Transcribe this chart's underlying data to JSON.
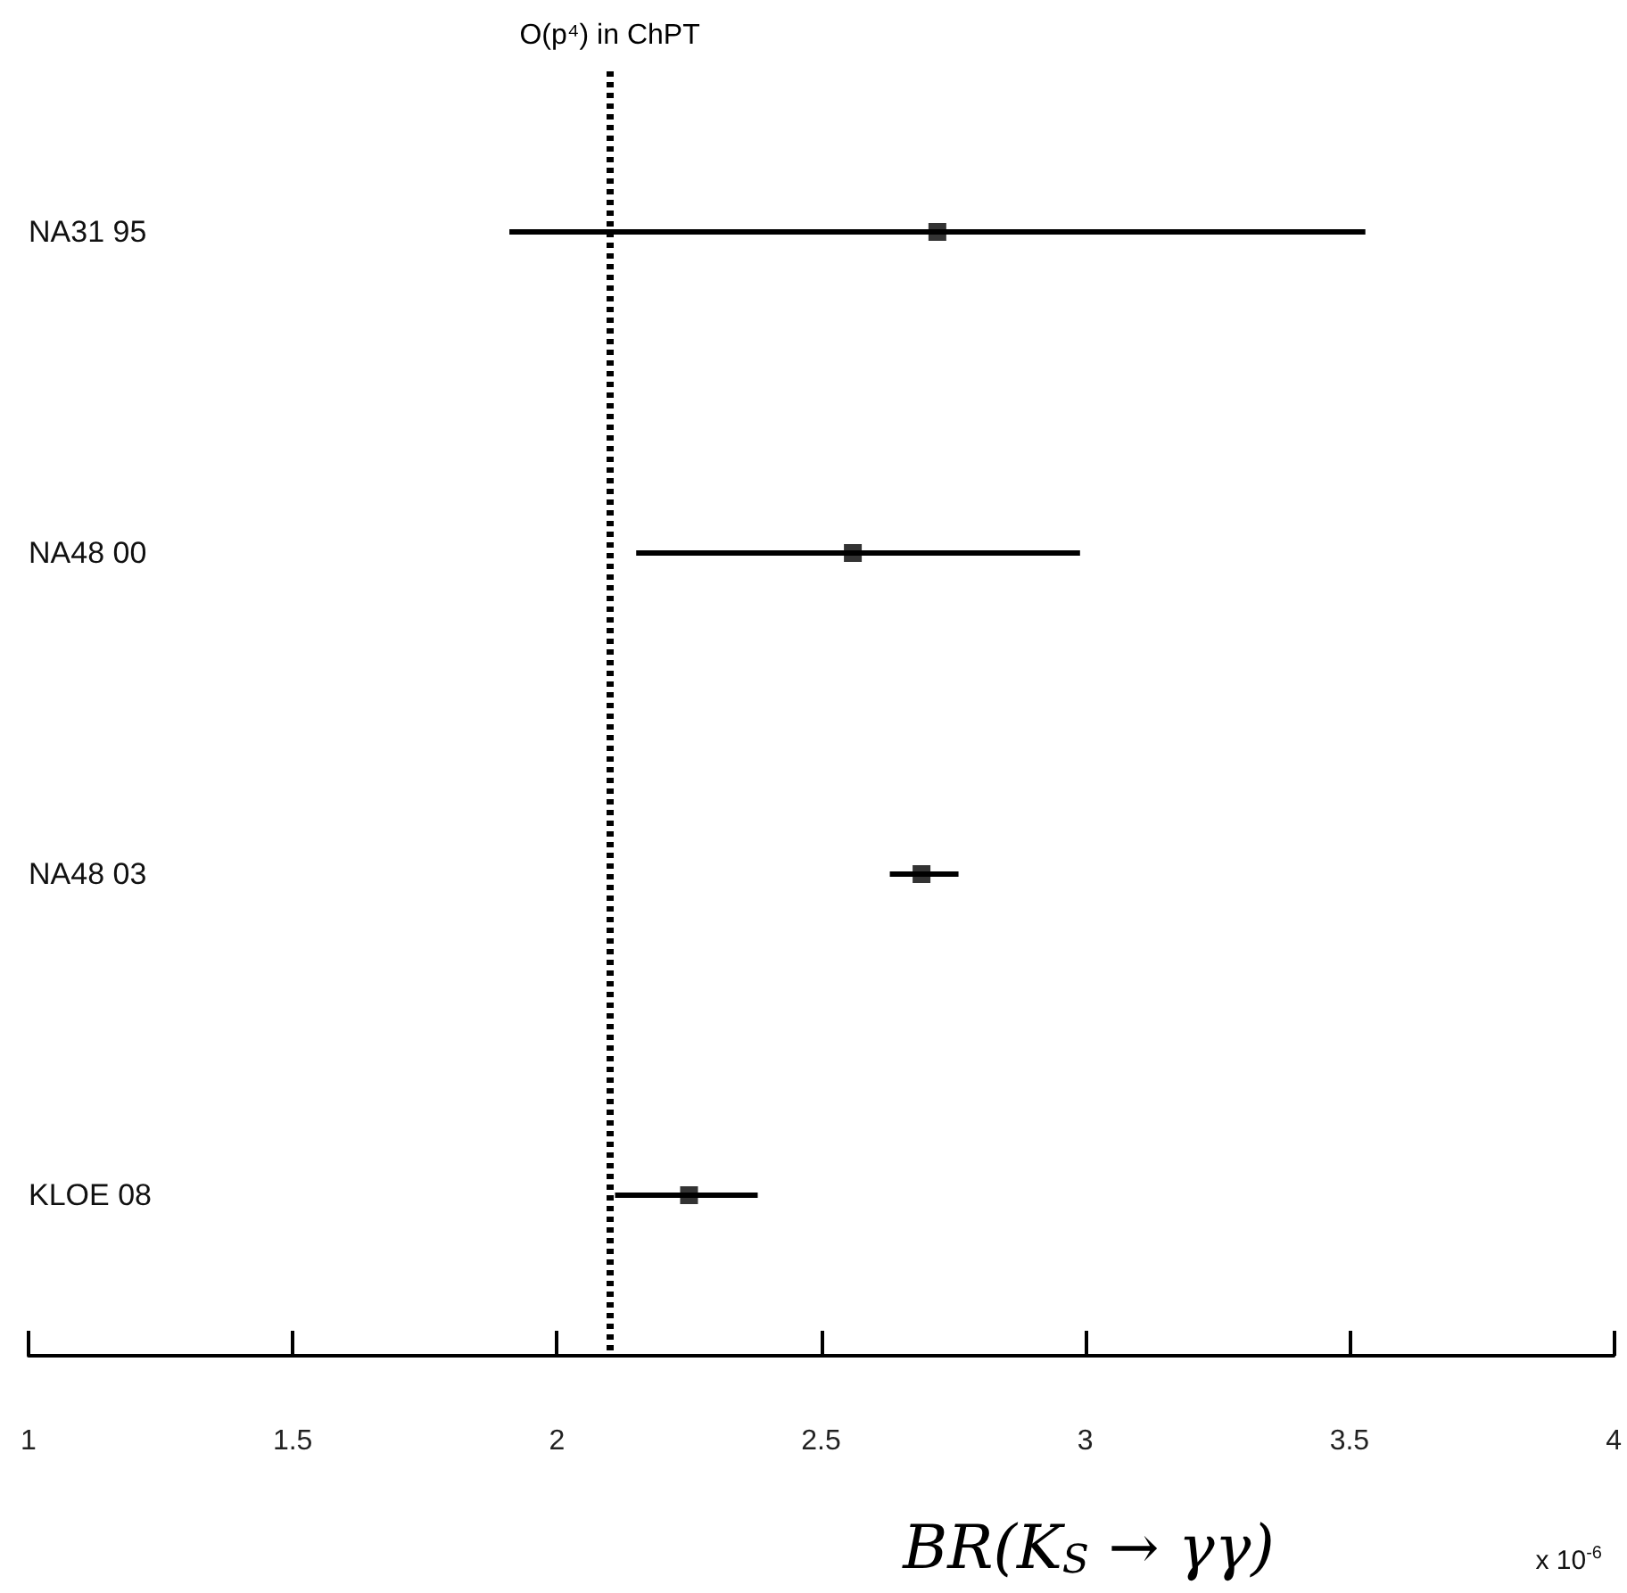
{
  "chart_data": {
    "type": "scatter",
    "orientation": "horizontal",
    "categories": [
      "NA31 95",
      "NA48 00",
      "NA48 03",
      "KLOE 08"
    ],
    "values": [
      2.72,
      2.56,
      2.69,
      2.25
    ],
    "errors": [
      0.81,
      [
        2.15,
        2.99
      ],
      [
        2.63,
        2.76
      ],
      [
        2.11,
        2.38
      ]
    ],
    "color": "#000000",
    "marker": "square",
    "xlabel": "BR(K$_{S}$ → γγ)",
    "annotations": [
      "x 10$^{-6}$"
    ],
    "xlim": [
      1,
      4
    ],
    "xticks": [
      1,
      1.5,
      2,
      2.5,
      3,
      3.5,
      4
    ],
    "ref_lines": [
      {
        "axis": "x",
        "value": 2.1,
        "label": "O(p⁴) in ChPT",
        "color": "#000000",
        "line_style": "dotted"
      }
    ],
    "grid": false,
    "legend": false
  }
}
